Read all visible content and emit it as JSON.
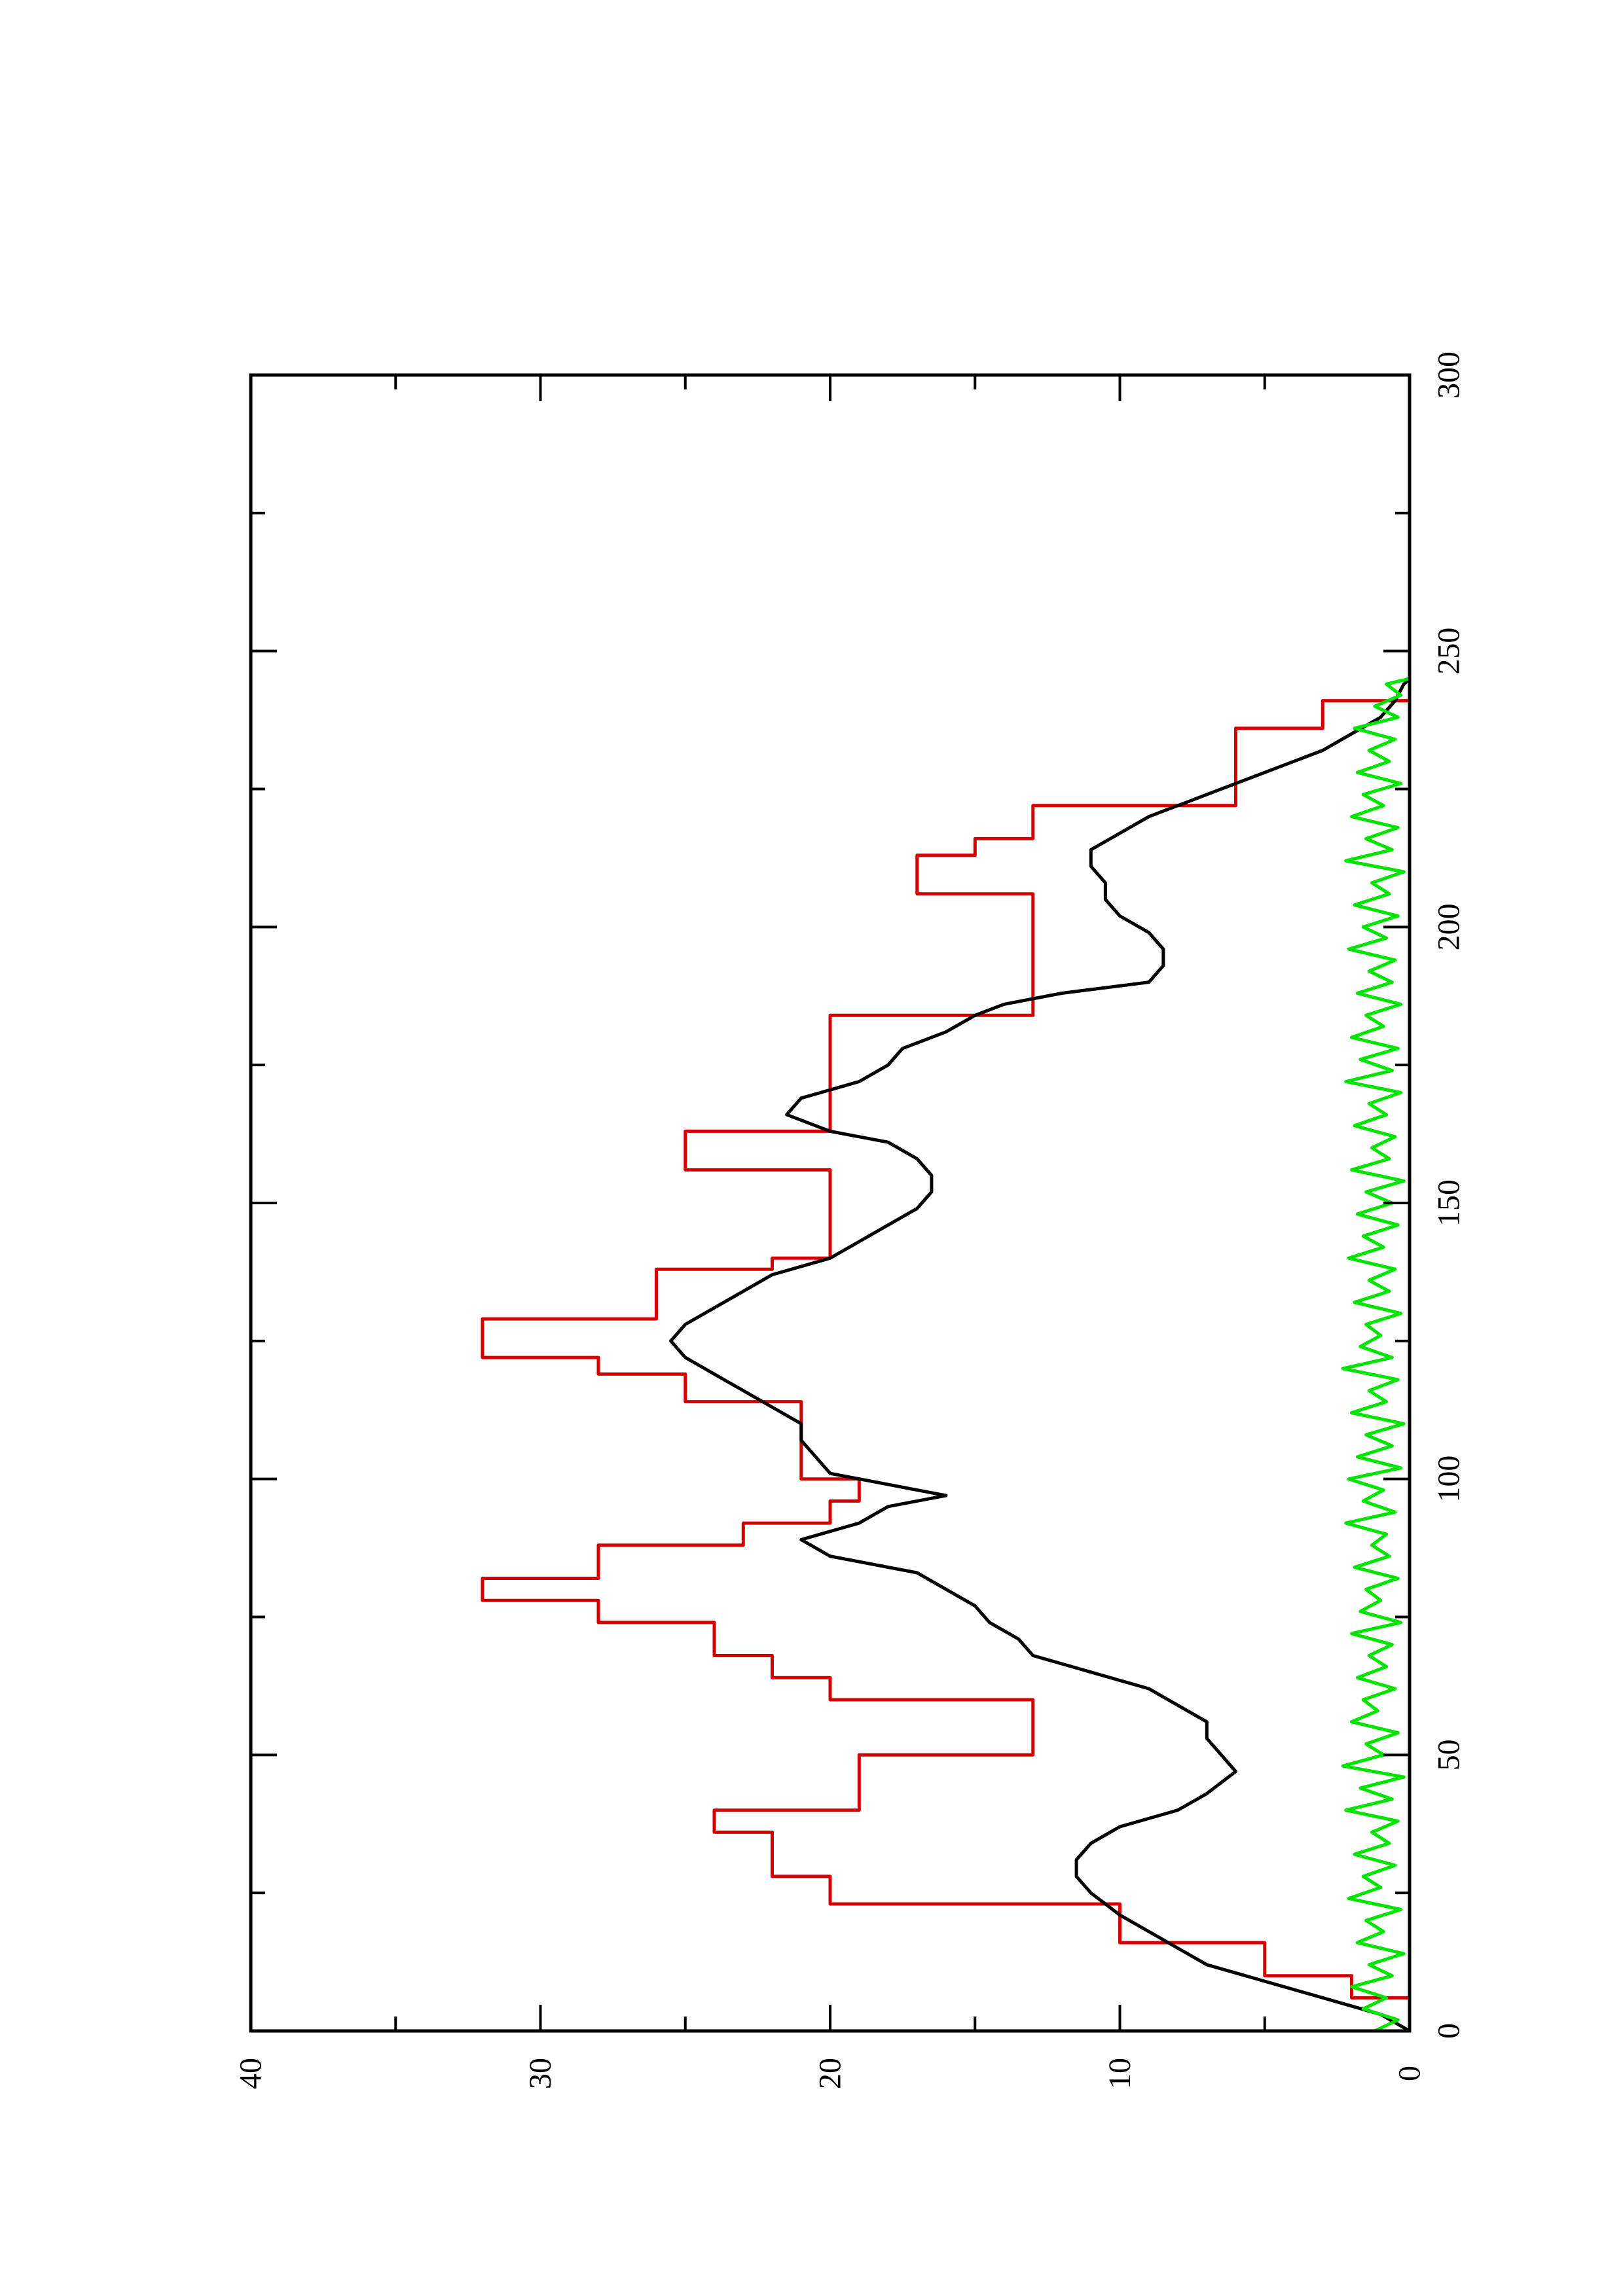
{
  "chart_data": {
    "type": "line",
    "orientation": "rotated-90-ccw",
    "title": "",
    "xlabel": "",
    "ylabel": "",
    "xlim": [
      0,
      300
    ],
    "ylim": [
      0,
      40
    ],
    "x_ticks": [
      0,
      50,
      100,
      150,
      200,
      250,
      300
    ],
    "x_tick_labels": [
      "0",
      "50",
      "100",
      "150",
      "200",
      "250",
      "300"
    ],
    "y_ticks": [
      0,
      10,
      20,
      30,
      40
    ],
    "y_tick_labels": [
      "0",
      "10",
      "20",
      "30",
      "40"
    ],
    "grid": false,
    "legend": "none",
    "series": [
      {
        "color": "#d40000",
        "x": [
          0,
          6,
          6,
          10,
          10,
          16,
          16,
          23,
          23,
          28,
          28,
          36,
          36,
          40,
          40,
          50,
          50,
          60,
          60,
          64,
          64,
          68,
          68,
          74,
          74,
          78,
          78,
          82,
          82,
          88,
          88,
          92,
          92,
          96,
          96,
          100,
          100,
          114,
          114,
          119,
          119,
          122,
          122,
          129,
          129,
          138,
          138,
          140,
          140,
          156,
          156,
          163,
          163,
          169,
          169,
          184,
          184,
          191,
          191,
          206,
          206,
          213,
          213,
          216,
          216,
          222,
          222,
          229,
          229,
          236,
          236,
          241,
          241,
          245
        ],
        "y": [
          0,
          0,
          2,
          2,
          5,
          5,
          10,
          10,
          20,
          20,
          22,
          22,
          24,
          24,
          19,
          19,
          13,
          13,
          20,
          20,
          22,
          22,
          24,
          24,
          28,
          28,
          32,
          32,
          28,
          28,
          23,
          23,
          20,
          20,
          19,
          19,
          21,
          21,
          25,
          25,
          28,
          28,
          32,
          32,
          26,
          26,
          22,
          22,
          20,
          20,
          25,
          25,
          20,
          20,
          20,
          20,
          13,
          13,
          13,
          13,
          17,
          17,
          15,
          15,
          13,
          13,
          6,
          6,
          6,
          6,
          3,
          3,
          0,
          0
        ]
      },
      {
        "color": "#000000",
        "x": [
          0,
          3,
          6,
          9,
          12,
          15,
          18,
          21,
          23,
          25,
          28,
          31,
          34,
          37,
          40,
          43,
          45,
          47,
          50,
          53,
          56,
          59,
          62,
          65,
          68,
          71,
          74,
          77,
          80,
          83,
          86,
          89,
          92,
          95,
          97,
          99,
          101,
          104,
          107,
          110,
          113,
          116,
          119,
          122,
          125,
          128,
          131,
          134,
          137,
          140,
          143,
          146,
          149,
          152,
          155,
          158,
          161,
          163,
          166,
          169,
          172,
          175,
          178,
          181,
          184,
          186,
          188,
          190,
          193,
          196,
          199,
          202,
          205,
          208,
          211,
          214,
          217,
          220,
          223,
          226,
          229,
          232,
          235,
          238,
          241,
          244,
          245
        ],
        "y": [
          0,
          1,
          3,
          5,
          7,
          8,
          9,
          10,
          10.5,
          11,
          11.5,
          11.5,
          11,
          10,
          8,
          7,
          6.5,
          6,
          6.5,
          7,
          7,
          8,
          9,
          11,
          13,
          13.5,
          14.5,
          15,
          16,
          17,
          20,
          21,
          19,
          18,
          16,
          18,
          20,
          20.5,
          21,
          21,
          22,
          23,
          24,
          25,
          25.5,
          25,
          24,
          23,
          22,
          20,
          19,
          18,
          17,
          16.5,
          16.5,
          17,
          18,
          20,
          21.5,
          21,
          19,
          18,
          17.5,
          16,
          15,
          14,
          12,
          9,
          8.5,
          8.5,
          9,
          10,
          10.5,
          10.5,
          11,
          11,
          10,
          9,
          7.5,
          6,
          4.5,
          3,
          2,
          1,
          0.5,
          0.2,
          0
        ]
      },
      {
        "color": "#00e400",
        "x": [
          0,
          2,
          4,
          6,
          8,
          10,
          12,
          14,
          16,
          18,
          20,
          22,
          24,
          26,
          28,
          30,
          32,
          34,
          36,
          38,
          40,
          42,
          44,
          46,
          48,
          50,
          52,
          54,
          56,
          58,
          60,
          62,
          64,
          66,
          68,
          70,
          72,
          74,
          76,
          78,
          80,
          82,
          84,
          86,
          88,
          90,
          92,
          94,
          96,
          98,
          100,
          102,
          104,
          106,
          108,
          110,
          112,
          114,
          116,
          118,
          120,
          122,
          124,
          126,
          128,
          130,
          132,
          134,
          136,
          138,
          140,
          142,
          144,
          146,
          148,
          150,
          152,
          154,
          156,
          158,
          160,
          162,
          164,
          166,
          168,
          170,
          172,
          174,
          176,
          178,
          180,
          182,
          184,
          186,
          188,
          190,
          192,
          194,
          196,
          198,
          200,
          202,
          204,
          206,
          208,
          210,
          212,
          214,
          216,
          218,
          220,
          222,
          224,
          226,
          228,
          230,
          232,
          234,
          236,
          238,
          240,
          242,
          244,
          245
        ],
        "y": [
          1.2,
          0.4,
          1.6,
          0.8,
          2.0,
          0.6,
          1.4,
          0.2,
          1.8,
          0.9,
          1.5,
          0.3,
          2.1,
          1.0,
          1.6,
          0.5,
          1.9,
          0.7,
          1.3,
          0.4,
          2.2,
          0.6,
          1.7,
          0.2,
          2.3,
          0.9,
          1.5,
          0.4,
          2.0,
          1.1,
          1.6,
          0.5,
          1.8,
          0.8,
          1.4,
          0.6,
          2.0,
          0.3,
          1.7,
          1.0,
          1.5,
          0.4,
          1.9,
          0.7,
          1.3,
          0.8,
          2.2,
          0.5,
          1.6,
          0.9,
          2.1,
          0.3,
          1.8,
          0.6,
          1.5,
          0.2,
          2.0,
          0.8,
          1.4,
          0.4,
          2.3,
          0.6,
          1.7,
          1.0,
          1.5,
          0.3,
          1.9,
          0.7,
          1.4,
          0.5,
          2.1,
          0.9,
          1.6,
          0.4,
          1.8,
          0.6,
          1.5,
          0.2,
          2.0,
          0.7,
          1.3,
          0.5,
          1.9,
          0.8,
          1.4,
          0.3,
          2.2,
          0.6,
          1.7,
          0.4,
          2.0,
          0.9,
          1.5,
          0.3,
          1.8,
          0.6,
          1.4,
          0.5,
          2.1,
          0.8,
          1.6,
          0.4,
          1.9,
          0.7,
          1.3,
          0.2,
          2.2,
          0.6,
          1.5,
          0.4,
          2.0,
          0.9,
          1.6,
          0.3,
          1.8,
          0.7,
          1.4,
          0.5,
          1.9,
          0.4,
          1.2,
          0.3,
          0.8,
          0
        ]
      }
    ]
  }
}
